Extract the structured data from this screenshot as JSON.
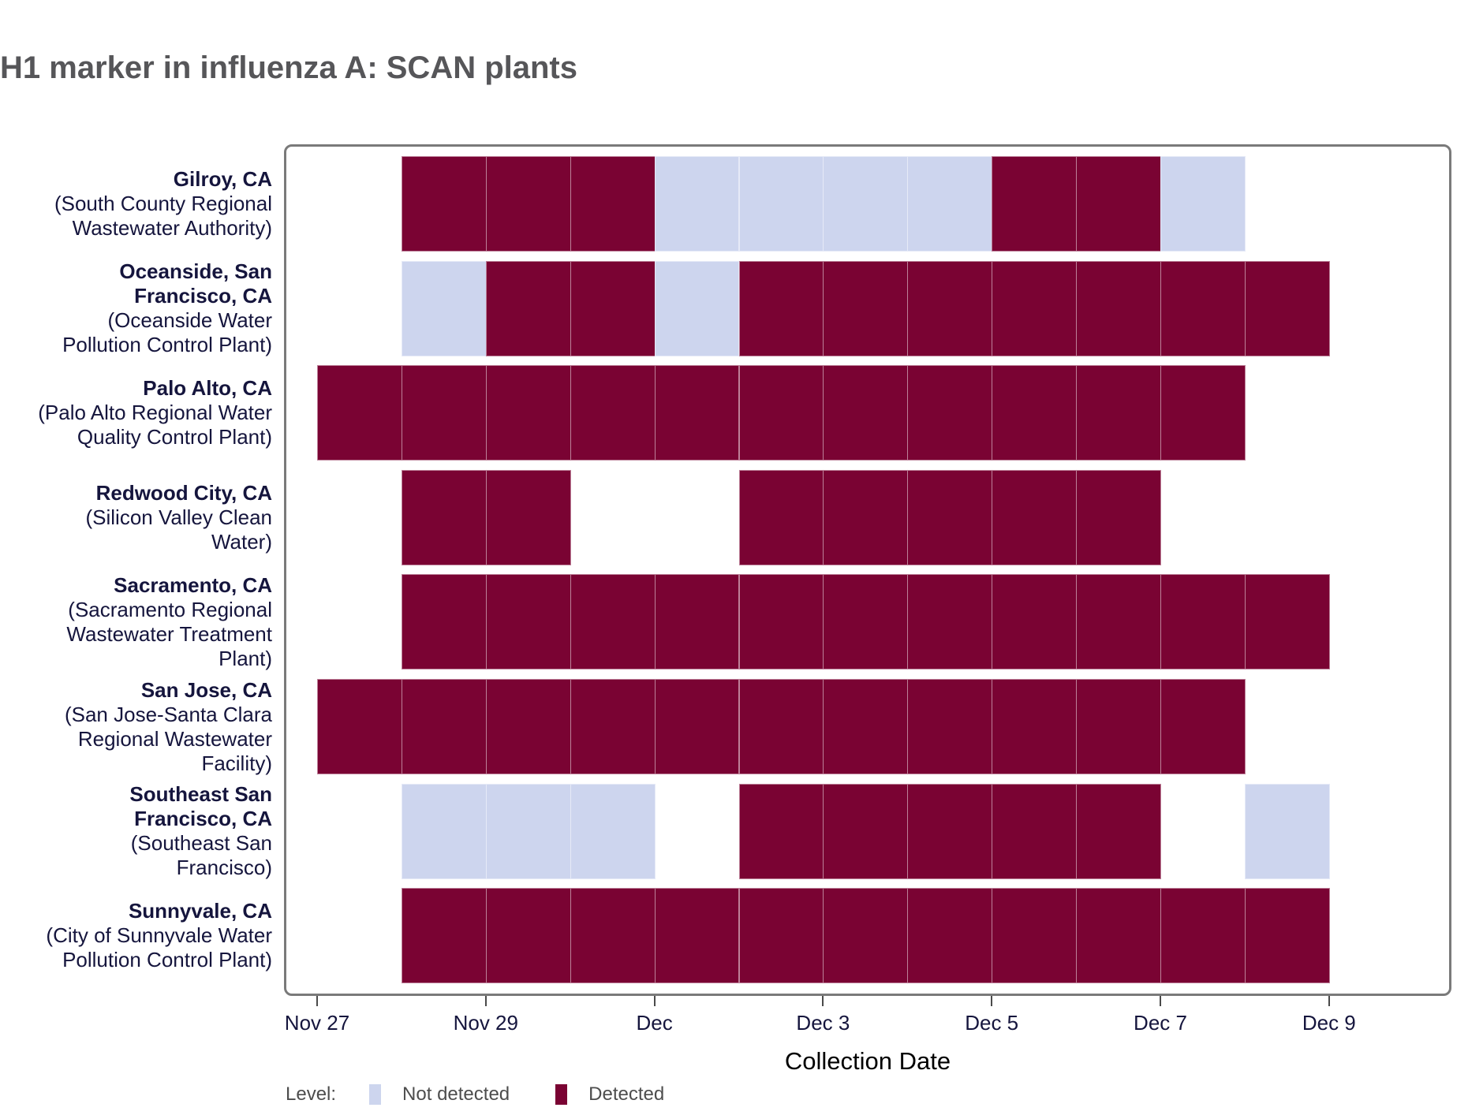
{
  "title": "H1 marker in influenza A: SCAN plants",
  "chart_data": {
    "type": "heatmap",
    "title": "H1 marker in influenza A: SCAN plants",
    "xlabel": "Collection Date",
    "ylabel": "",
    "grid": false,
    "legend_position": "bottom-left",
    "x_dates": [
      "Nov 27",
      "Nov 28",
      "Nov 29",
      "Nov 30",
      "Dec 1",
      "Dec 2",
      "Dec 3",
      "Dec 4",
      "Dec 5",
      "Dec 6",
      "Dec 7",
      "Dec 8"
    ],
    "x_ticks": [
      {
        "day": 0,
        "label": "Nov 27"
      },
      {
        "day": 2,
        "label": "Nov 29"
      },
      {
        "day": 4,
        "label": "Dec"
      },
      {
        "day": 6,
        "label": "Dec 3"
      },
      {
        "day": 8,
        "label": "Dec 5"
      },
      {
        "day": 10,
        "label": "Dec 7"
      },
      {
        "day": 12,
        "label": "Dec 9"
      }
    ],
    "legend": {
      "title": "Level:",
      "items": [
        {
          "label": "Not detected",
          "status": "N",
          "color": "#cdd5ee"
        },
        {
          "label": "Detected",
          "status": "D",
          "color": "#7a0333"
        }
      ]
    },
    "colors": {
      "detected": "#7a0333",
      "not_detected": "#cdd5ee",
      "axis_text": "#15153d",
      "title_text": "#565659",
      "panel_border": "#7a7a7a"
    },
    "rows": [
      {
        "city_lines": [
          "Gilroy, CA"
        ],
        "plant_lines": [
          "(South County Regional",
          "Wastewater Authority)"
        ],
        "cells": [
          "",
          "D",
          "D",
          "D",
          "N",
          "N",
          "N",
          "N",
          "D",
          "D",
          "N",
          ""
        ]
      },
      {
        "city_lines": [
          "Oceanside, San",
          "Francisco, CA"
        ],
        "plant_lines": [
          "(Oceanside Water",
          "Pollution Control Plant)"
        ],
        "cells": [
          "",
          "N",
          "D",
          "D",
          "N",
          "D",
          "D",
          "D",
          "D",
          "D",
          "D",
          "D"
        ]
      },
      {
        "city_lines": [
          "Palo Alto, CA"
        ],
        "plant_lines": [
          "(Palo Alto Regional Water",
          "Quality Control Plant)"
        ],
        "cells": [
          "D",
          "D",
          "D",
          "D",
          "D",
          "D",
          "D",
          "D",
          "D",
          "D",
          "D",
          ""
        ]
      },
      {
        "city_lines": [
          "Redwood City, CA"
        ],
        "plant_lines": [
          "(Silicon Valley Clean",
          "Water)"
        ],
        "cells": [
          "",
          "D",
          "D",
          "",
          "",
          "D",
          "D",
          "D",
          "D",
          "D",
          "",
          ""
        ]
      },
      {
        "city_lines": [
          "Sacramento, CA"
        ],
        "plant_lines": [
          "(Sacramento Regional",
          "Wastewater Treatment",
          "Plant)"
        ],
        "cells": [
          "",
          "D",
          "D",
          "D",
          "D",
          "D",
          "D",
          "D",
          "D",
          "D",
          "D",
          "D"
        ]
      },
      {
        "city_lines": [
          "San Jose, CA"
        ],
        "plant_lines": [
          "(San Jose-Santa Clara",
          "Regional Wastewater",
          "Facility)"
        ],
        "cells": [
          "D",
          "D",
          "D",
          "D",
          "D",
          "D",
          "D",
          "D",
          "D",
          "D",
          "D",
          ""
        ]
      },
      {
        "city_lines": [
          "Southeast San",
          "Francisco, CA"
        ],
        "plant_lines": [
          "(Southeast San",
          "Francisco)"
        ],
        "cells": [
          "",
          "N",
          "N",
          "N",
          "",
          "D",
          "D",
          "D",
          "D",
          "D",
          "",
          "N"
        ]
      },
      {
        "city_lines": [
          "Sunnyvale, CA"
        ],
        "plant_lines": [
          "(City of Sunnyvale Water",
          "Pollution Control Plant)"
        ],
        "cells": [
          "",
          "D",
          "D",
          "D",
          "D",
          "D",
          "D",
          "D",
          "D",
          "D",
          "D",
          "D"
        ]
      }
    ]
  }
}
